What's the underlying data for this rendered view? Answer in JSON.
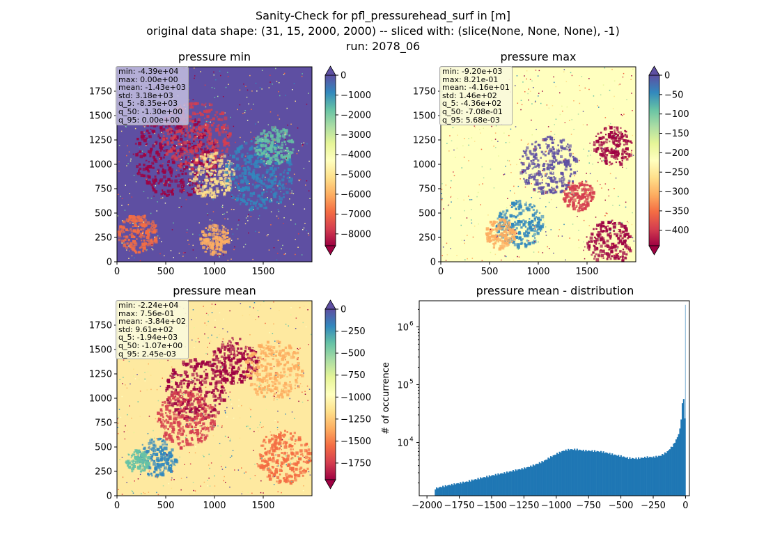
{
  "figure": {
    "title_lines": [
      "Sanity-Check for pfl_pressurehead_surf in [m]",
      "original data shape: (31, 15, 2000, 2000) -- sliced with: (slice(None, None, None), -1)",
      "run: 2078_06"
    ]
  },
  "colormap": {
    "name": "Spectral",
    "stops": [
      "#9e0142",
      "#d53e4f",
      "#f46d43",
      "#fdae61",
      "#fee08b",
      "#ffffbf",
      "#e6f598",
      "#abdda4",
      "#66c2a5",
      "#3288bd",
      "#5e4fa2"
    ]
  },
  "chart_data": [
    {
      "type": "heatmap",
      "title": "pressure min",
      "xlim": [
        0,
        2000
      ],
      "ylim": [
        0,
        2000
      ],
      "xticks": [
        "0",
        "500",
        "1000",
        "1500"
      ],
      "yticks": [
        "0",
        "250",
        "500",
        "750",
        "1000",
        "1250",
        "1500",
        "1750"
      ],
      "colorbar": {
        "vmin": -8600,
        "vmax": 0,
        "ticks": [
          0,
          -1000,
          -2000,
          -3000,
          -4000,
          -5000,
          -6000,
          -7000,
          -8000
        ],
        "tick_labels": [
          "0",
          "−1000",
          "−2000",
          "−3000",
          "−4000",
          "−5000",
          "−6000",
          "−7000",
          "−8000"
        ],
        "extend": "both"
      },
      "background": "violet-blue",
      "stats": [
        "min: -4.39e+04",
        "max: 0.00e+00",
        "mean: -1.43e+03",
        "std: 3.18e+03",
        "q_5: -8.35e+03",
        "q_50: -1.30e+00",
        "q_95: 0.00e+00"
      ]
    },
    {
      "type": "heatmap",
      "title": "pressure max",
      "xlim": [
        0,
        2000
      ],
      "ylim": [
        0,
        2000
      ],
      "xticks": [
        "0",
        "500",
        "1000",
        "1500"
      ],
      "yticks": [
        "0",
        "250",
        "500",
        "750",
        "1000",
        "1250",
        "1500",
        "1750"
      ],
      "colorbar": {
        "vmin": -440,
        "vmax": 0,
        "ticks": [
          0,
          -50,
          -100,
          -150,
          -200,
          -250,
          -300,
          -350,
          -400
        ],
        "tick_labels": [
          "0",
          "−50",
          "−100",
          "−150",
          "−200",
          "−250",
          "−300",
          "−350",
          "−400"
        ],
        "extend": "both"
      },
      "background": "pale-yellow",
      "stats": [
        "min: -9.20e+03",
        "max: 8.21e-01",
        "mean: -4.16e+01",
        "std: 1.46e+02",
        "q_5: -4.36e+02",
        "q_50: -7.08e-01",
        "q_95: 5.68e-03"
      ]
    },
    {
      "type": "heatmap",
      "title": "pressure mean",
      "xlim": [
        0,
        2000
      ],
      "ylim": [
        0,
        2000
      ],
      "xticks": [
        "0",
        "500",
        "1000",
        "1500"
      ],
      "yticks": [
        "0",
        "250",
        "500",
        "750",
        "1000",
        "1250",
        "1500",
        "1750"
      ],
      "colorbar": {
        "vmin": -1940,
        "vmax": 0,
        "ticks": [
          0,
          -250,
          -500,
          -750,
          -1000,
          -1250,
          -1500,
          -1750
        ],
        "tick_labels": [
          "0",
          "−250",
          "−500",
          "−750",
          "−1000",
          "−1250",
          "−1500",
          "−1750"
        ],
        "extend": "both"
      },
      "background": "pale-yellow",
      "stats": [
        "min: -2.24e+04",
        "max: 7.56e-01",
        "mean: -3.84e+02",
        "std: 9.61e+02",
        "q_5: -1.94e+03",
        "q_50: -1.07e+00",
        "q_95: 2.45e-03"
      ]
    },
    {
      "type": "bar",
      "title": "pressure mean - distribution",
      "ylabel": "# of occurrence",
      "xlabel": "",
      "yscale": "log",
      "xlim": [
        -2060,
        30
      ],
      "ylim_log10": [
        3.08,
        6.45
      ],
      "xticks": [
        -2000,
        -1750,
        -1500,
        -1250,
        -1000,
        -750,
        -500,
        -250,
        0
      ],
      "xtick_labels": [
        "−2000",
        "−1750",
        "−1500",
        "−1250",
        "−1000",
        "−750",
        "−500",
        "−250",
        "0"
      ],
      "yticks_log10": [
        4,
        5,
        6
      ],
      "ytick_labels": [
        "10",
        "10",
        "10"
      ],
      "ytick_exponents": [
        "4",
        "5",
        "6"
      ],
      "bar_color": "#1f77b4",
      "bin_width": 9.7,
      "bins_x": [
        -1940,
        -1900,
        -1850,
        -1800,
        -1750,
        -1700,
        -1650,
        -1600,
        -1550,
        -1500,
        -1450,
        -1400,
        -1350,
        -1300,
        -1250,
        -1200,
        -1150,
        -1100,
        -1050,
        -1000,
        -950,
        -900,
        -850,
        -800,
        -750,
        -700,
        -650,
        -600,
        -550,
        -500,
        -450,
        -400,
        -350,
        -300,
        -250,
        -200,
        -150,
        -100,
        -70,
        -50,
        -40,
        -30,
        -20,
        -15,
        -10,
        -5,
        -1
      ],
      "bins_count": [
        1600,
        1700,
        1800,
        1900,
        2000,
        2100,
        2250,
        2400,
        2550,
        2700,
        2850,
        3000,
        3200,
        3400,
        3600,
        3900,
        4300,
        4800,
        5600,
        6400,
        7200,
        7600,
        7600,
        7300,
        7200,
        7100,
        6900,
        6500,
        6100,
        5800,
        5400,
        5300,
        5400,
        5600,
        5600,
        5900,
        6800,
        9000,
        12000,
        16000,
        24000,
        45000,
        60000,
        45000,
        25000,
        40000,
        2400000
      ]
    }
  ]
}
